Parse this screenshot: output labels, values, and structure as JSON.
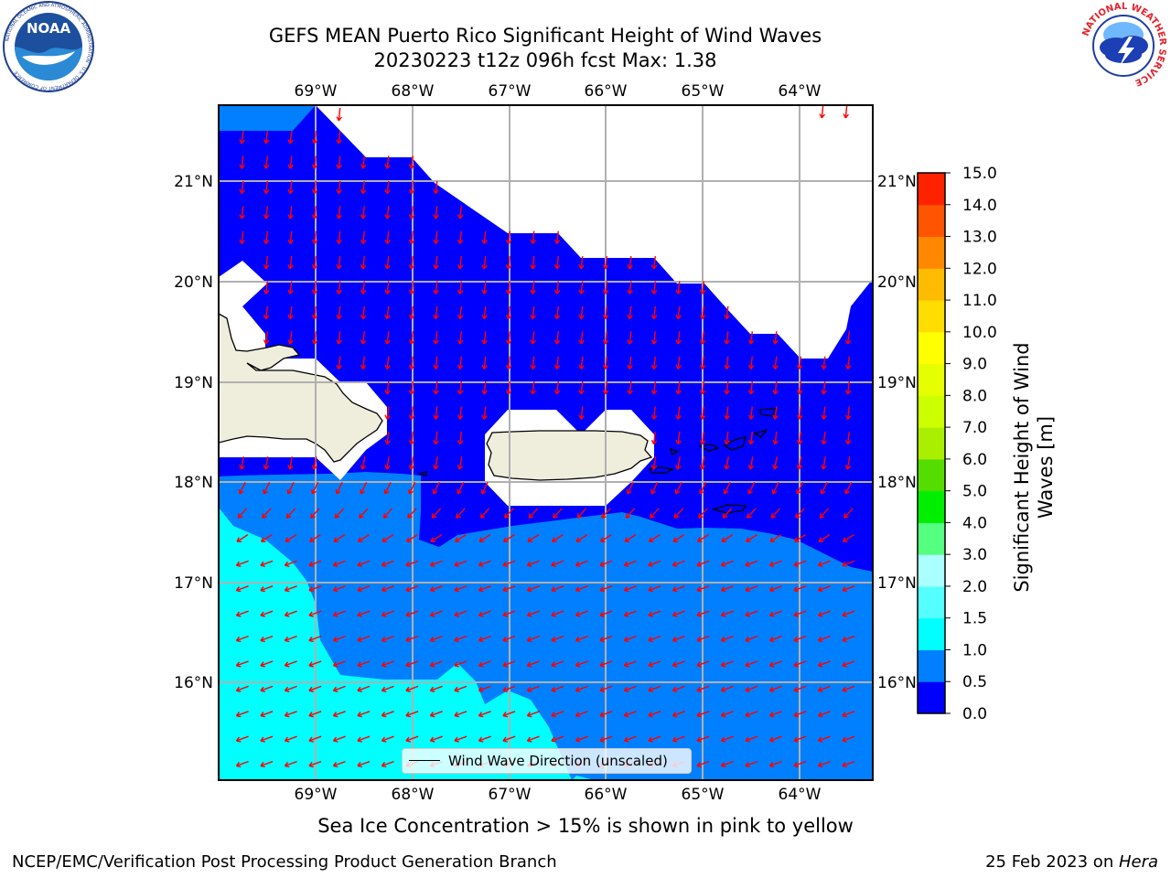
{
  "title": {
    "line1": "GEFS MEAN Puerto Rico Significant Height of Wind Waves",
    "line2": "20230223 t12z 096h fcst   Max: 1.38"
  },
  "map": {
    "lon_labels": [
      "69°W",
      "68°W",
      "67°W",
      "66°W",
      "65°W",
      "64°W"
    ],
    "lat_labels": [
      "21°N",
      "20°N",
      "19°N",
      "18°N",
      "17°N",
      "16°N"
    ],
    "extent": {
      "lon_min": -70.0,
      "lon_max": -63.25,
      "lat_min": 15.0,
      "lat_max": 21.75
    },
    "legend_label": "Wind Wave Direction (unscaled)",
    "arrow_color": "#ff0000",
    "land_color": "#efeddc",
    "ocean_0_0_5_color": "#0000ff",
    "ocean_0_5_1_0_color": "#0080ff",
    "ocean_1_0_1_5_color": "#00ffff"
  },
  "colorbar": {
    "label": "Significant Height of Wind Waves [m]",
    "ticks": [
      "0.0",
      "0.5",
      "1.0",
      "1.5",
      "2.0",
      "3.0",
      "4.0",
      "5.0",
      "6.0",
      "7.0",
      "8.0",
      "9.0",
      "10.0",
      "11.0",
      "12.0",
      "13.0",
      "14.0",
      "15.0"
    ],
    "colors": [
      "#0000ff",
      "#0080ff",
      "#00ffff",
      "#55ffff",
      "#aaffff",
      "#55ff7f",
      "#00ee00",
      "#55dd00",
      "#aaee00",
      "#ccff00",
      "#e6ff00",
      "#ffff00",
      "#ffdd00",
      "#ffbb00",
      "#ff8800",
      "#ff5500",
      "#ff2200"
    ]
  },
  "note": "Sea Ice Concentration > 15% is shown in pink to yellow",
  "footer": {
    "left": "NCEP/EMC/Verification Post Processing Product Generation Branch",
    "right_date": "25 Feb 2023 on ",
    "right_host": "Hera"
  },
  "logos": {
    "noaa": "NOAA",
    "noaa_ring": "NATIONAL OCEANIC AND ATMOSPHERIC ADMINISTRATION · U.S. DEPARTMENT OF COMMERCE",
    "nws_ring": "NATIONAL WEATHER SERVICE"
  }
}
